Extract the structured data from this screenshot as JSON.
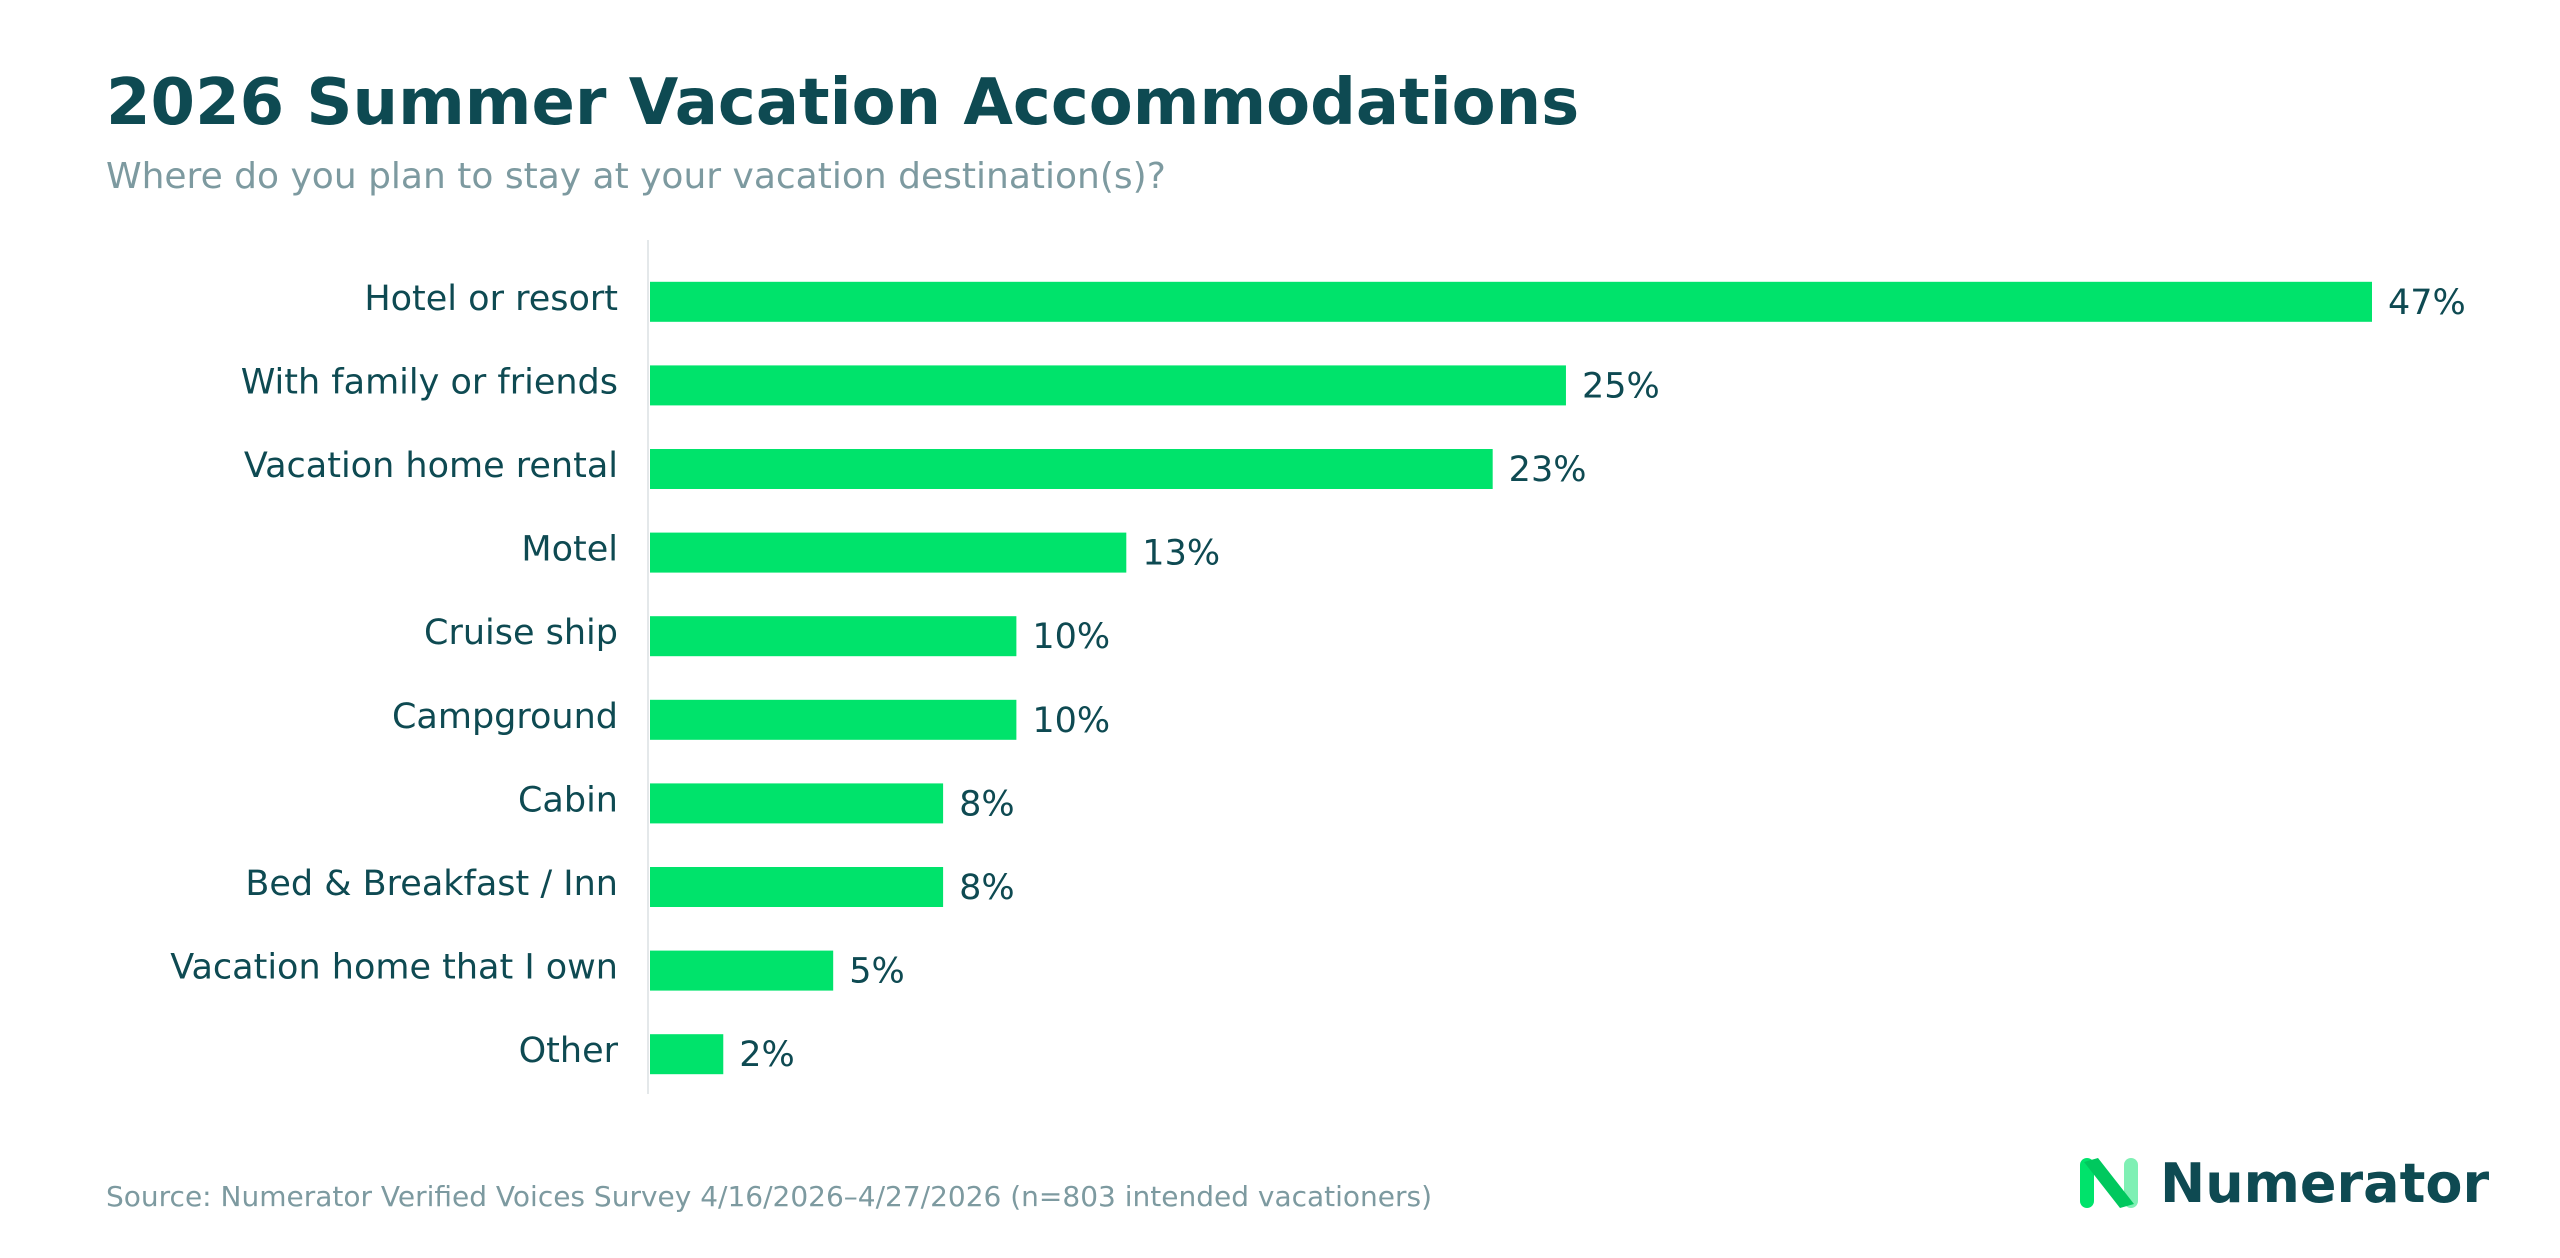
{
  "header": {
    "title": "2026 Summer Vacation Accommodations",
    "subtitle": "Where do you plan to stay at your vacation destination(s)?"
  },
  "chart_data": {
    "type": "bar",
    "orientation": "horizontal",
    "categories": [
      "Hotel or resort",
      "With family or friends",
      "Vacation home rental",
      "Motel",
      "Cruise ship",
      "Campground",
      "Cabin",
      "Bed & Breakfast / Inn",
      "Vacation home that I own",
      "Other"
    ],
    "values": [
      47,
      25,
      23,
      13,
      10,
      10,
      8,
      8,
      5,
      2
    ],
    "value_labels": [
      "47%",
      "25%",
      "23%",
      "13%",
      "10%",
      "10%",
      "8%",
      "8%",
      "5%",
      "2%"
    ],
    "unit": "%",
    "xlim": [
      0,
      47
    ],
    "grid": false,
    "legend": "none",
    "bar_color": "#00e36b",
    "text_color": "#0e4a52"
  },
  "footer": {
    "source": "Source: Numerator Verified Voices Survey 4/16/2026–4/27/2026 (n=803 intended vacationers)",
    "brand": "Numerator"
  },
  "colors": {
    "title": "#0e4a52",
    "muted": "#7d9aa0",
    "accent": "#00e36b",
    "accent_light": "#7ff0b4"
  },
  "icons": {
    "logo_mark": "numerator-n-icon"
  }
}
